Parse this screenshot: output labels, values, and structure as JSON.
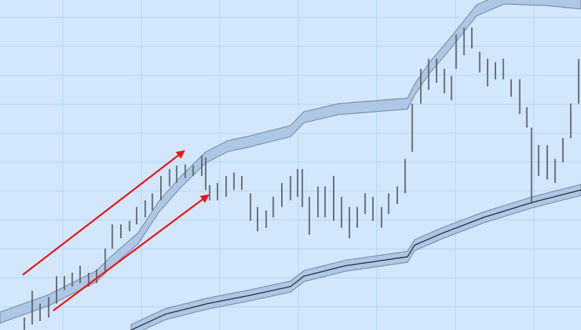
{
  "chart_data": {
    "type": "range-bar",
    "color": "#5a626b",
    "background": "#d2e7fc",
    "grid": true,
    "grid_color": "#b4d5f2",
    "xlim": [
      0,
      74
    ],
    "ylim": [
      0,
      114
    ],
    "xticks": [
      8,
      18,
      28,
      38,
      48,
      58,
      68
    ],
    "yticks": [
      8,
      18,
      28,
      38,
      48,
      58,
      68,
      78,
      88,
      98,
      108
    ],
    "x": [
      3.1,
      4.1,
      5.1,
      6.2,
      7.2,
      8.2,
      9.2,
      10.2,
      11.3,
      12.3,
      13.4,
      14.3,
      15.4,
      16.5,
      17.4,
      18.5,
      19.4,
      20.5,
      21.6,
      22.5,
      23.6,
      24.6,
      25.7,
      26.2,
      26.7,
      27.7,
      28.8,
      29.8,
      30.8,
      31.9,
      32.8,
      33.9,
      34.8,
      35.9,
      37.0,
      37.9,
      38.5,
      39.4,
      40.5,
      41.4,
      42.5,
      43.5,
      44.5,
      45.5,
      46.5,
      47.5,
      48.6,
      49.5,
      50.6,
      51.6,
      52.5,
      53.6,
      54.6,
      55.6,
      56.6,
      57.5,
      58.1,
      59.1,
      60.1,
      61.1,
      62.1,
      63.1,
      64.1,
      65.1,
      66.2,
      67.1,
      67.7,
      68.6,
      69.7,
      70.7,
      71.7,
      72.7,
      73.7
    ],
    "high": [
      4.3,
      13.6,
      9.1,
      11.4,
      18.6,
      18.6,
      19.8,
      22.2,
      19.8,
      21.0,
      28.1,
      36.5,
      36.5,
      37.7,
      42.5,
      44.8,
      47.2,
      53.2,
      55.6,
      56.8,
      57.2,
      56.8,
      60.3,
      59.6,
      50.1,
      50.8,
      53.2,
      54.4,
      53.2,
      47.2,
      42.5,
      41.3,
      46.0,
      50.8,
      53.2,
      55.6,
      55.6,
      46.0,
      49.6,
      49.6,
      53.2,
      46.0,
      42.5,
      42.5,
      47.2,
      46.0,
      42.5,
      47.2,
      49.6,
      59.1,
      78.2,
      90.2,
      93.7,
      93.7,
      90.2,
      87.8,
      102.1,
      104.5,
      104.5,
      96.1,
      93.7,
      92.5,
      93.7,
      86.6,
      86.6,
      77.0,
      69.9,
      63.9,
      63.9,
      59.1,
      66.3,
      78.2,
      93.7
    ],
    "low": [
      0,
      1.9,
      3.1,
      4.3,
      9.1,
      13.8,
      15.0,
      16.2,
      15.0,
      16.2,
      19.8,
      28.1,
      31.7,
      34.1,
      36.5,
      38.9,
      41.3,
      44.8,
      49.6,
      50.8,
      52.5,
      53.2,
      53.2,
      48.4,
      44.8,
      44.8,
      46.0,
      48.4,
      48.4,
      37.7,
      34.1,
      35.3,
      38.9,
      42.5,
      44.8,
      46.0,
      42.5,
      32.9,
      38.9,
      38.9,
      37.7,
      35.3,
      31.7,
      35.3,
      40.1,
      37.7,
      35.3,
      40.1,
      43.6,
      47.2,
      61.5,
      78.2,
      83.0,
      85.4,
      81.8,
      79.4,
      90.2,
      94.9,
      97.3,
      89.0,
      84.2,
      86.6,
      86.6,
      80.6,
      74.6,
      69.9,
      43.6,
      53.2,
      52.0,
      50.8,
      57.9,
      66.3,
      78.2
    ],
    "channels": [
      {
        "color": "#a9c3e2",
        "edge_color": "#7a8ba0",
        "band_width": 3.8,
        "center_line": false,
        "x": [
          0,
          6.2,
          12.3,
          14.1,
          17.6,
          20.2,
          22.9,
          26.2,
          29.0,
          31.7,
          37.0,
          38.7,
          43.1,
          51.9,
          52.8,
          54.6,
          57.2,
          60.7,
          64.2,
          69.5,
          74.0
        ],
        "values": [
          4.3,
          10.3,
          18.6,
          23.4,
          31.7,
          42.5,
          50.8,
          59.6,
          63.5,
          65.1,
          68.7,
          73.5,
          76.3,
          78.2,
          83.0,
          90.2,
          98.5,
          110.4,
          114.5,
          114.0,
          112.8
        ]
      },
      {
        "color": "#a9c3e2",
        "edge_color": "#7a8ba0",
        "band_width": 3.8,
        "center_line": true,
        "center_color": "#2f3338",
        "x": [
          16.7,
          21.1,
          26.4,
          31.7,
          37.0,
          38.7,
          44.0,
          51.9,
          52.8,
          56.3,
          61.6,
          67.8,
          74.0
        ],
        "values": [
          0,
          5.5,
          9.1,
          11.9,
          15.0,
          18.6,
          22.2,
          25.3,
          29.3,
          33.4,
          38.9,
          44.1,
          48.4
        ]
      }
    ]
  }
}
